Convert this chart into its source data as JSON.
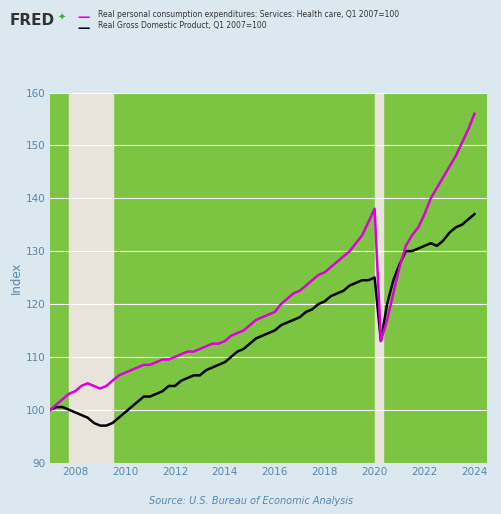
{
  "source": "Source: U.S. Bureau of Economic Analysis",
  "legend_line1": "Real personal consumption expenditures: Services: Health care, Q1 2007=100",
  "legend_line2": "Real Gross Domestic Product, Q1 2007=100",
  "ylabel": "Index",
  "ylim": [
    90,
    160
  ],
  "xlim": [
    2007.0,
    2024.5
  ],
  "xticks": [
    2008,
    2010,
    2012,
    2014,
    2016,
    2018,
    2020,
    2022,
    2024
  ],
  "yticks": [
    90,
    100,
    110,
    120,
    130,
    140,
    150,
    160
  ],
  "outer_background": "#dce8f0",
  "green_color": "#7cc542",
  "recession_color": "#e8e4dc",
  "magenta_color": "#dd00dd",
  "black_color": "#000000",
  "recession1_start": 2007.75,
  "recession1_end": 2009.5,
  "recession2_start": 2020.0,
  "recession2_end": 2020.33,
  "health_pce_x": [
    2007.0,
    2007.25,
    2007.5,
    2007.75,
    2008.0,
    2008.25,
    2008.5,
    2008.75,
    2009.0,
    2009.25,
    2009.5,
    2009.75,
    2010.0,
    2010.25,
    2010.5,
    2010.75,
    2011.0,
    2011.25,
    2011.5,
    2011.75,
    2012.0,
    2012.25,
    2012.5,
    2012.75,
    2013.0,
    2013.25,
    2013.5,
    2013.75,
    2014.0,
    2014.25,
    2014.5,
    2014.75,
    2015.0,
    2015.25,
    2015.5,
    2015.75,
    2016.0,
    2016.25,
    2016.5,
    2016.75,
    2017.0,
    2017.25,
    2017.5,
    2017.75,
    2018.0,
    2018.25,
    2018.5,
    2018.75,
    2019.0,
    2019.25,
    2019.5,
    2019.75,
    2020.0,
    2020.25,
    2020.5,
    2020.75,
    2021.0,
    2021.25,
    2021.5,
    2021.75,
    2022.0,
    2022.25,
    2022.5,
    2022.75,
    2023.0,
    2023.25,
    2023.5,
    2023.75,
    2024.0
  ],
  "health_pce_y": [
    100.0,
    101.0,
    102.0,
    103.0,
    103.5,
    104.5,
    105.0,
    104.5,
    104.0,
    104.5,
    105.5,
    106.5,
    107.0,
    107.5,
    108.0,
    108.5,
    108.5,
    109.0,
    109.5,
    109.5,
    110.0,
    110.5,
    111.0,
    111.0,
    111.5,
    112.0,
    112.5,
    112.5,
    113.0,
    114.0,
    114.5,
    115.0,
    116.0,
    117.0,
    117.5,
    118.0,
    118.5,
    120.0,
    121.0,
    122.0,
    122.5,
    123.5,
    124.5,
    125.5,
    126.0,
    127.0,
    128.0,
    129.0,
    130.0,
    131.5,
    133.0,
    135.5,
    138.0,
    113.0,
    117.0,
    122.0,
    127.0,
    131.0,
    133.0,
    134.5,
    137.0,
    140.0,
    142.0,
    144.0,
    146.0,
    148.0,
    150.5,
    153.0,
    156.0
  ],
  "real_gdp_x": [
    2007.0,
    2007.25,
    2007.5,
    2007.75,
    2008.0,
    2008.25,
    2008.5,
    2008.75,
    2009.0,
    2009.25,
    2009.5,
    2009.75,
    2010.0,
    2010.25,
    2010.5,
    2010.75,
    2011.0,
    2011.25,
    2011.5,
    2011.75,
    2012.0,
    2012.25,
    2012.5,
    2012.75,
    2013.0,
    2013.25,
    2013.5,
    2013.75,
    2014.0,
    2014.25,
    2014.5,
    2014.75,
    2015.0,
    2015.25,
    2015.5,
    2015.75,
    2016.0,
    2016.25,
    2016.5,
    2016.75,
    2017.0,
    2017.25,
    2017.5,
    2017.75,
    2018.0,
    2018.25,
    2018.5,
    2018.75,
    2019.0,
    2019.25,
    2019.5,
    2019.75,
    2020.0,
    2020.25,
    2020.5,
    2020.75,
    2021.0,
    2021.25,
    2021.5,
    2021.75,
    2022.0,
    2022.25,
    2022.5,
    2022.75,
    2023.0,
    2023.25,
    2023.5,
    2023.75,
    2024.0
  ],
  "real_gdp_y": [
    100.0,
    100.5,
    100.5,
    100.0,
    99.5,
    99.0,
    98.5,
    97.5,
    97.0,
    97.0,
    97.5,
    98.5,
    99.5,
    100.5,
    101.5,
    102.5,
    102.5,
    103.0,
    103.5,
    104.5,
    104.5,
    105.5,
    106.0,
    106.5,
    106.5,
    107.5,
    108.0,
    108.5,
    109.0,
    110.0,
    111.0,
    111.5,
    112.5,
    113.5,
    114.0,
    114.5,
    115.0,
    116.0,
    116.5,
    117.0,
    117.5,
    118.5,
    119.0,
    120.0,
    120.5,
    121.5,
    122.0,
    122.5,
    123.5,
    124.0,
    124.5,
    124.5,
    125.0,
    113.0,
    120.0,
    124.5,
    127.5,
    130.0,
    130.0,
    130.5,
    131.0,
    131.5,
    131.0,
    132.0,
    133.5,
    134.5,
    135.0,
    136.0,
    137.0
  ],
  "fred_color": "#333333",
  "tick_color": "#5588aa",
  "label_color": "#5588aa",
  "source_color": "#5588aa"
}
